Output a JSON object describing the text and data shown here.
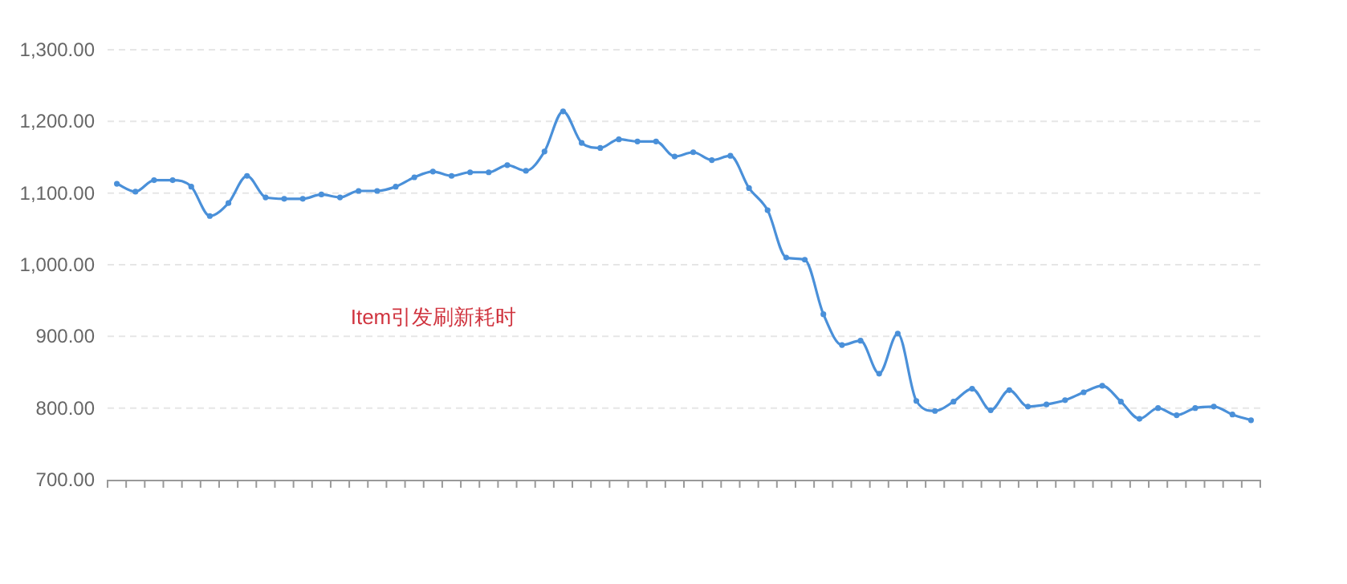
{
  "chart_data": {
    "type": "line",
    "categories": [
      null,
      null,
      null,
      null,
      null,
      null,
      null,
      null,
      null,
      null,
      null,
      null,
      null,
      null,
      null,
      null,
      null,
      null,
      null,
      null,
      null,
      null,
      null,
      null,
      null,
      null,
      null,
      null,
      null,
      null,
      null,
      null,
      null,
      null,
      null,
      null,
      null,
      null,
      null,
      null,
      null,
      null,
      null,
      null,
      null,
      null,
      null,
      null,
      null,
      null,
      null,
      null,
      null,
      null,
      null,
      null,
      null,
      null,
      null,
      null,
      null,
      null
    ],
    "series": [
      {
        "color": "#4a90d9",
        "values": [
          1113,
          1102,
          1118,
          1118,
          1109,
          1068,
          1086,
          1124,
          1094,
          1092,
          1092,
          1098,
          1094,
          1103,
          1103,
          1109,
          1122,
          1130,
          1124,
          1129,
          1129,
          1139,
          1131,
          1158,
          1214,
          1170,
          1163,
          1175,
          1172,
          1172,
          1151,
          1157,
          1146,
          1152,
          1107,
          1076,
          1010,
          1007,
          931,
          888,
          894,
          848,
          904,
          810,
          796,
          809,
          827,
          797,
          825,
          802,
          805,
          811,
          822,
          831,
          809,
          785,
          800,
          790,
          800,
          802,
          791,
          783
        ]
      }
    ],
    "ylim": [
      700,
      1300
    ],
    "yticks": [
      {
        "value": 700,
        "label": "700.00"
      },
      {
        "value": 800,
        "label": "800.00"
      },
      {
        "value": 900,
        "label": "900.00"
      },
      {
        "value": 1000,
        "label": "1,000.00"
      },
      {
        "value": 1100,
        "label": "1,100.00"
      },
      {
        "value": 1200,
        "label": "1,200.00"
      },
      {
        "value": 1300,
        "label": "1,300.00"
      }
    ],
    "grid": "y",
    "marker": "circle",
    "line_style": "solid",
    "annotations": [
      "Item引发刷新耗时"
    ]
  }
}
